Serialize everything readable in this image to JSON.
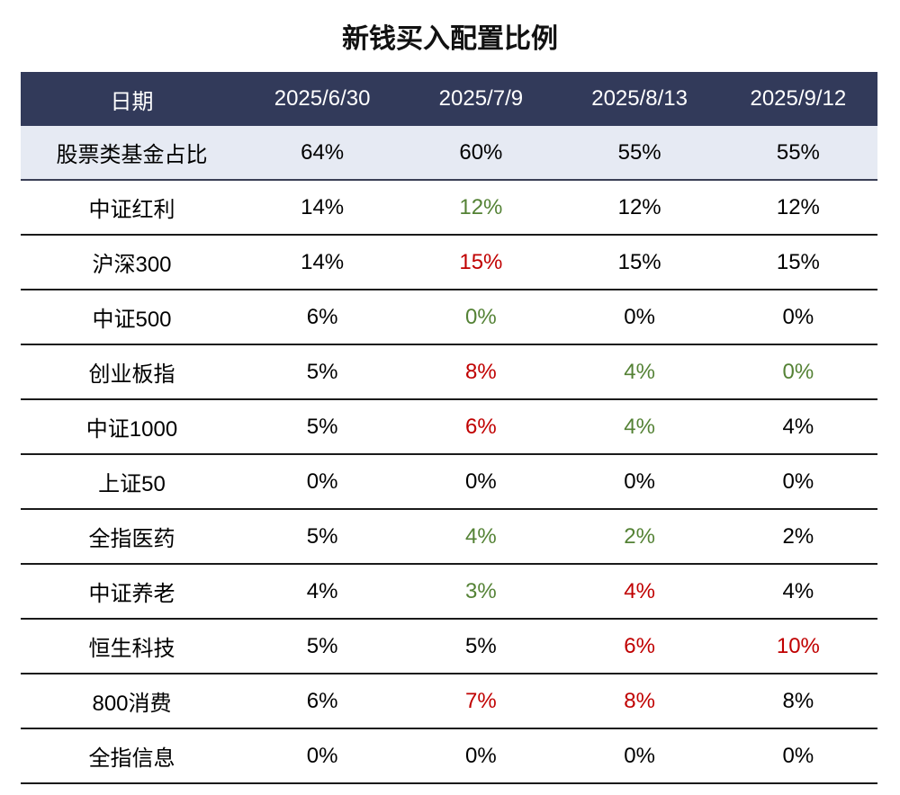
{
  "title": "新钱买入配置比例",
  "colors": {
    "header_bg": "#323a5a",
    "band_bg": "#e6eaf3",
    "decrease": "#548235",
    "increase": "#c00000",
    "neutral": "#000000"
  },
  "headers": [
    "日期",
    "2025/6/30",
    "2025/7/9",
    "2025/8/13",
    "2025/9/12"
  ],
  "rows": [
    {
      "label": "股票类基金占比",
      "cells": [
        {
          "v": "64%",
          "c": ""
        },
        {
          "v": "60%",
          "c": ""
        },
        {
          "v": "55%",
          "c": ""
        },
        {
          "v": "55%",
          "c": ""
        }
      ]
    },
    {
      "label": "中证红利",
      "cells": [
        {
          "v": "14%",
          "c": ""
        },
        {
          "v": "12%",
          "c": "green"
        },
        {
          "v": "12%",
          "c": ""
        },
        {
          "v": "12%",
          "c": ""
        }
      ]
    },
    {
      "label": "沪深300",
      "cells": [
        {
          "v": "14%",
          "c": ""
        },
        {
          "v": "15%",
          "c": "red"
        },
        {
          "v": "15%",
          "c": ""
        },
        {
          "v": "15%",
          "c": ""
        }
      ]
    },
    {
      "label": "中证500",
      "cells": [
        {
          "v": "6%",
          "c": ""
        },
        {
          "v": "0%",
          "c": "green"
        },
        {
          "v": "0%",
          "c": ""
        },
        {
          "v": "0%",
          "c": ""
        }
      ]
    },
    {
      "label": "创业板指",
      "cells": [
        {
          "v": "5%",
          "c": ""
        },
        {
          "v": "8%",
          "c": "red"
        },
        {
          "v": "4%",
          "c": "green"
        },
        {
          "v": "0%",
          "c": "green"
        }
      ]
    },
    {
      "label": "中证1000",
      "cells": [
        {
          "v": "5%",
          "c": ""
        },
        {
          "v": "6%",
          "c": "red"
        },
        {
          "v": "4%",
          "c": "green"
        },
        {
          "v": "4%",
          "c": ""
        }
      ]
    },
    {
      "label": "上证50",
      "cells": [
        {
          "v": "0%",
          "c": ""
        },
        {
          "v": "0%",
          "c": ""
        },
        {
          "v": "0%",
          "c": ""
        },
        {
          "v": "0%",
          "c": ""
        }
      ]
    },
    {
      "label": "全指医药",
      "cells": [
        {
          "v": "5%",
          "c": ""
        },
        {
          "v": "4%",
          "c": "green"
        },
        {
          "v": "2%",
          "c": "green"
        },
        {
          "v": "2%",
          "c": ""
        }
      ]
    },
    {
      "label": "中证养老",
      "cells": [
        {
          "v": "4%",
          "c": ""
        },
        {
          "v": "3%",
          "c": "green"
        },
        {
          "v": "4%",
          "c": "red"
        },
        {
          "v": "4%",
          "c": ""
        }
      ]
    },
    {
      "label": "恒生科技",
      "cells": [
        {
          "v": "5%",
          "c": ""
        },
        {
          "v": "5%",
          "c": ""
        },
        {
          "v": "6%",
          "c": "red"
        },
        {
          "v": "10%",
          "c": "red"
        }
      ]
    },
    {
      "label": "800消费",
      "cells": [
        {
          "v": "6%",
          "c": ""
        },
        {
          "v": "7%",
          "c": "red"
        },
        {
          "v": "8%",
          "c": "red"
        },
        {
          "v": "8%",
          "c": ""
        }
      ]
    },
    {
      "label": "全指信息",
      "cells": [
        {
          "v": "0%",
          "c": ""
        },
        {
          "v": "0%",
          "c": ""
        },
        {
          "v": "0%",
          "c": ""
        },
        {
          "v": "0%",
          "c": ""
        }
      ]
    }
  ]
}
